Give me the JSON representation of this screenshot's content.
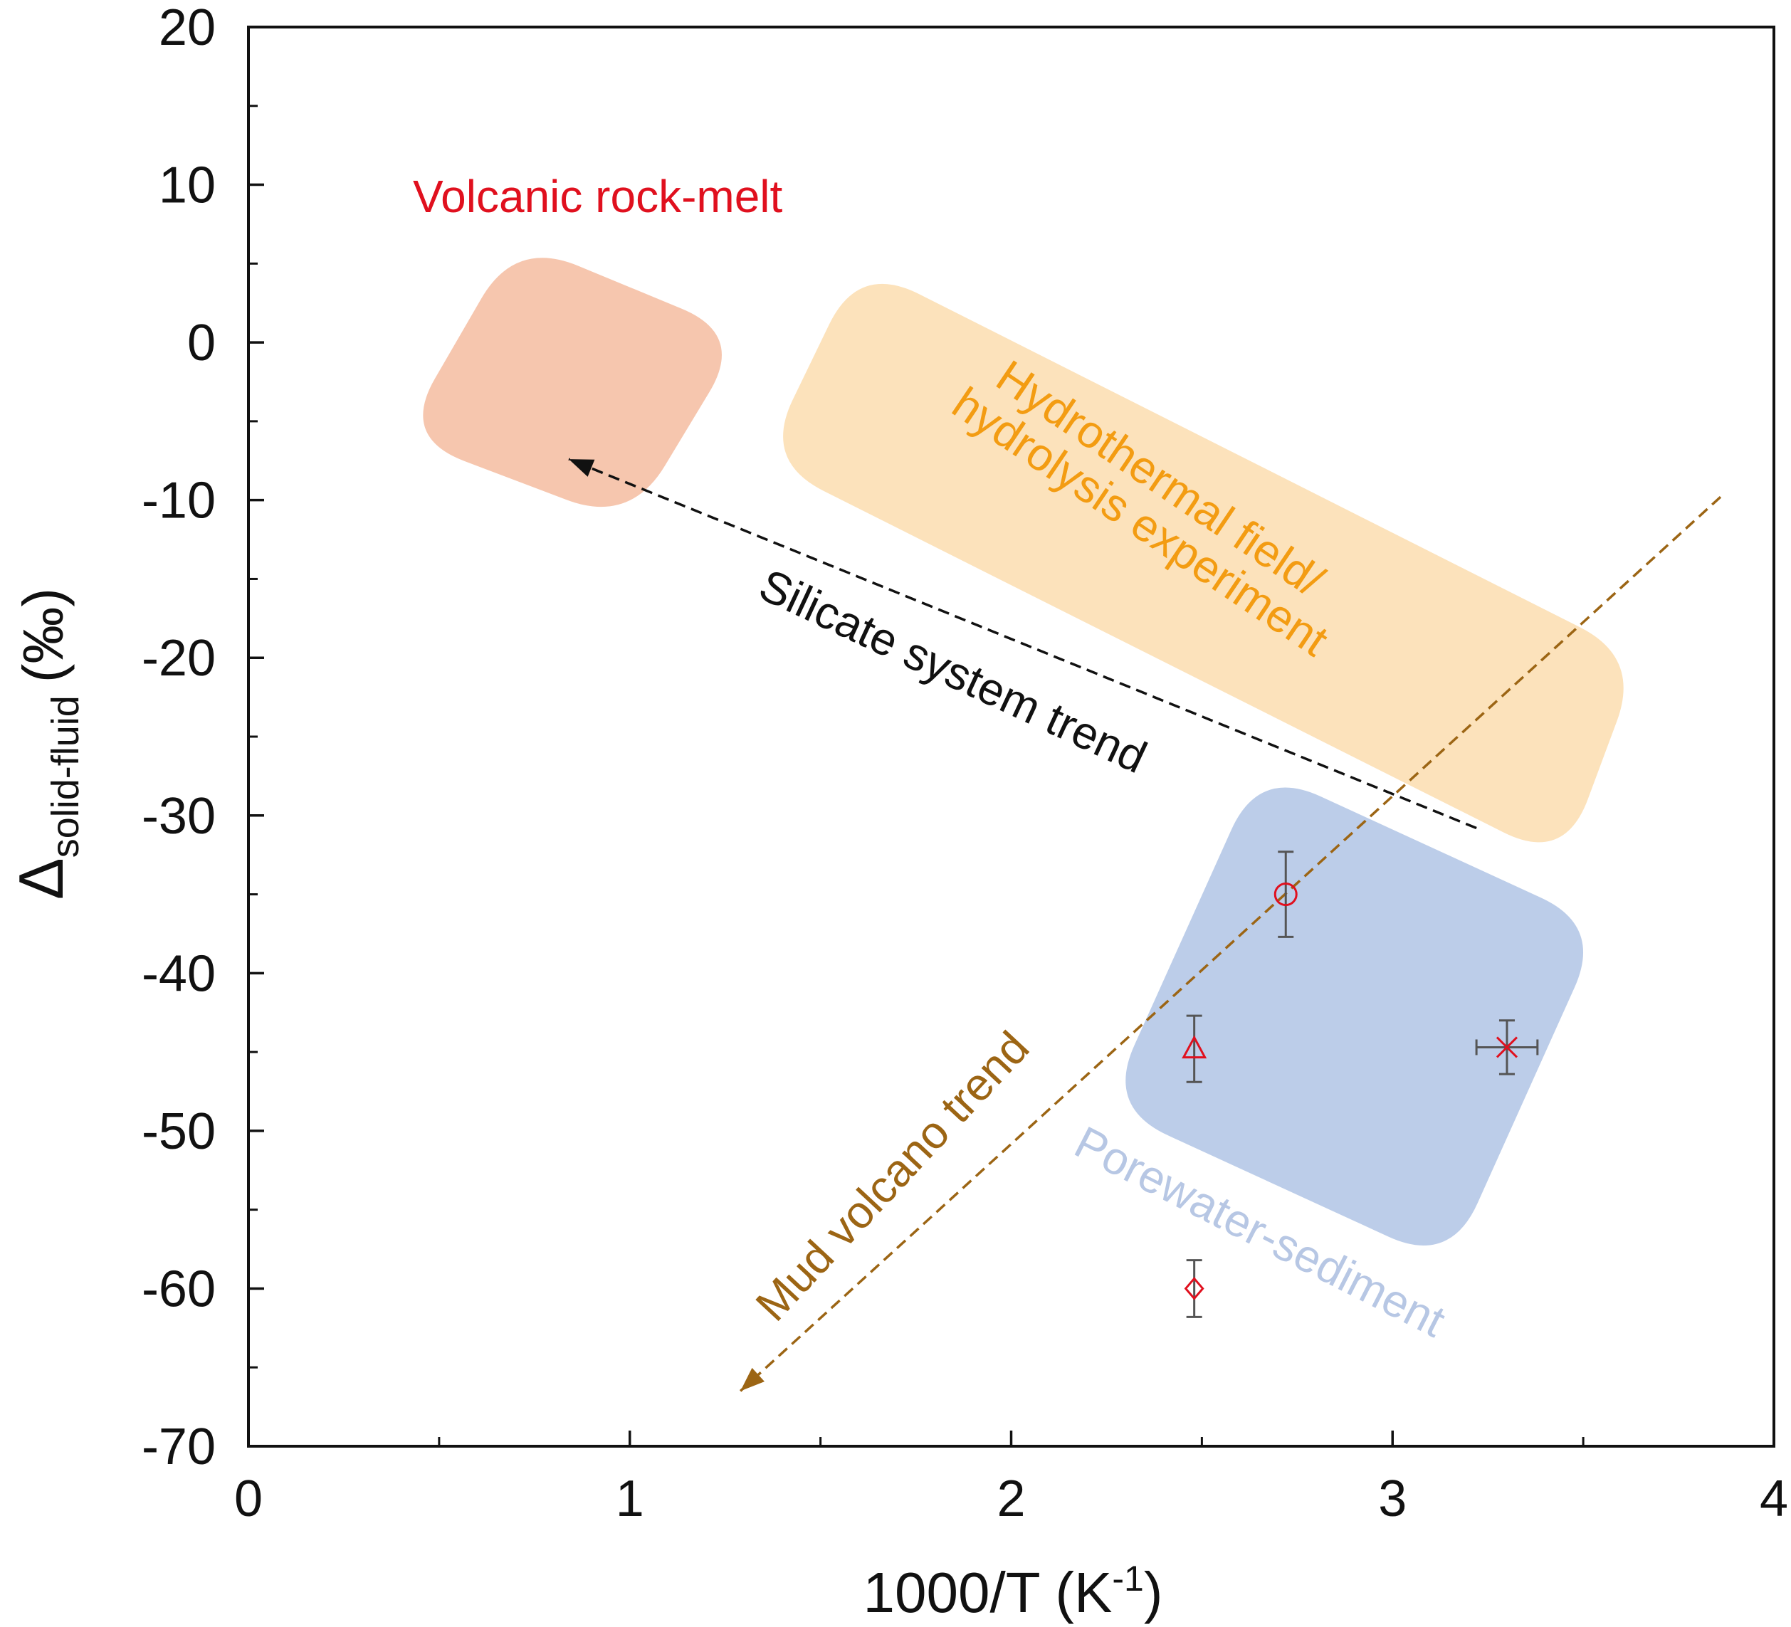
{
  "chart_data": {
    "type": "scatter",
    "xlabel": "1000/T (K",
    "xlabel_sup": "-1",
    "xlabel_end": ")",
    "ylabel_main": "Δ",
    "ylabel_sub": "solid-fluid",
    "ylabel_unit": "(‰)",
    "xlim": [
      0,
      4
    ],
    "ylim": [
      -70,
      20
    ],
    "x_ticks": [
      0,
      1,
      2,
      3,
      4
    ],
    "x_tick_labels": [
      "0",
      "1",
      "2",
      "3",
      "4"
    ],
    "x_minor_ticks": [
      0.5,
      1.5,
      2.5,
      3.5
    ],
    "y_ticks": [
      20,
      10,
      0,
      -10,
      -20,
      -30,
      -40,
      -50,
      -60,
      -70
    ],
    "y_tick_labels": [
      "20",
      "10",
      "0",
      "-10",
      "-20",
      "-30",
      "-40",
      "-50",
      "-60",
      "-70"
    ],
    "y_minor_ticks": [
      15,
      5,
      -5,
      -15,
      -25,
      -35,
      -45,
      -55,
      -65
    ],
    "grid": false,
    "regions": [
      {
        "label": "Volcanic rock-melt",
        "color": "#f6c6ae",
        "label_color": "#e0101e",
        "corners": [
          [
            0.7,
            6.5
          ],
          [
            1.3,
            0.5
          ],
          [
            1.0,
            -11.5
          ],
          [
            0.4,
            -6.0
          ]
        ]
      },
      {
        "label_line1": "Hydrothermal field/",
        "label_line2": "hydrolysis experiment",
        "color": "#fce2bb",
        "label_color": "#f39c12",
        "corners": [
          [
            1.6,
            5.0
          ],
          [
            3.65,
            -20.0
          ],
          [
            3.45,
            -33.0
          ],
          [
            1.35,
            -7.5
          ]
        ]
      },
      {
        "label": "Porewater-sediment",
        "color": "#bccde9",
        "label_color": "#b7c7e4",
        "corners": [
          [
            2.65,
            -27.0
          ],
          [
            3.55,
            -37.0
          ],
          [
            3.15,
            -58.5
          ],
          [
            2.25,
            -48.5
          ]
        ]
      }
    ],
    "trends": [
      {
        "label": "Silicate system trend",
        "color": "#111111",
        "from": [
          3.22,
          -30.8
        ],
        "to": [
          0.84,
          -7.4
        ]
      },
      {
        "label": "Mud volcano trend",
        "color": "#9c6514",
        "from": [
          3.86,
          -9.8
        ],
        "to": [
          1.29,
          -66.5
        ]
      }
    ],
    "series": [
      {
        "marker": "circle",
        "color": "#e0101e",
        "points": [
          {
            "x": 2.72,
            "y": -35.0,
            "xerr": 0,
            "yerr": 2.7
          }
        ]
      },
      {
        "marker": "triangle",
        "color": "#e0101e",
        "points": [
          {
            "x": 2.48,
            "y": -44.8,
            "xerr": 0,
            "yerr": 2.1
          }
        ]
      },
      {
        "marker": "x",
        "color": "#e0101e",
        "points": [
          {
            "x": 3.3,
            "y": -44.7,
            "xerr": 0.08,
            "yerr": 1.7
          }
        ]
      },
      {
        "marker": "diamond",
        "color": "#e0101e",
        "points": [
          {
            "x": 2.48,
            "y": -60.0,
            "xerr": 0,
            "yerr": 1.8
          }
        ]
      }
    ]
  }
}
